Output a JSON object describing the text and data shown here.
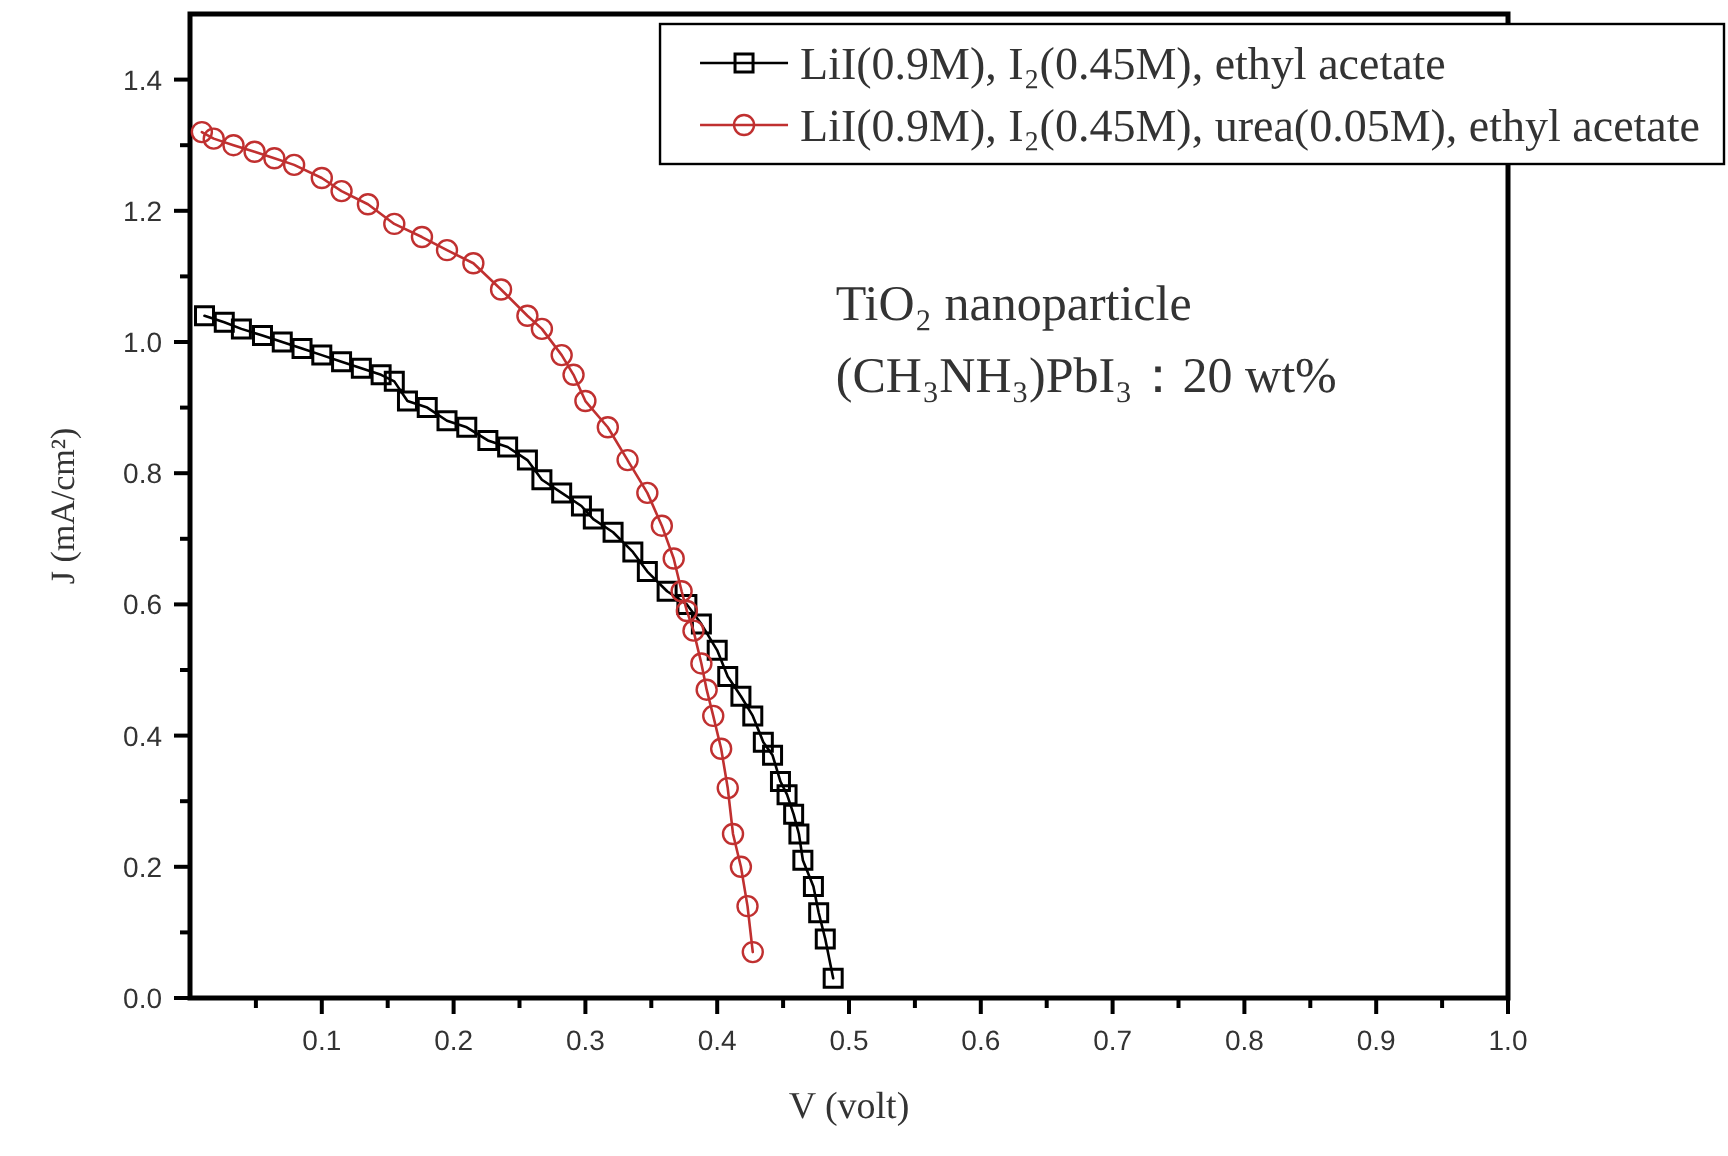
{
  "chart_data": {
    "type": "line",
    "xlabel": "V (volt)",
    "ylabel": "J (mA/cm²)",
    "xlim": [
      0,
      1.0
    ],
    "ylim": [
      0,
      1.5
    ],
    "xticks": [
      {
        "value": 0.05,
        "label": null
      },
      0.1,
      {
        "value": 0.15,
        "label": null
      },
      0.2,
      {
        "value": 0.25,
        "label": null
      },
      0.3,
      {
        "value": 0.35,
        "label": null
      },
      0.4,
      {
        "value": 0.45,
        "label": null
      },
      0.5,
      {
        "value": 0.55,
        "label": null
      },
      0.6,
      {
        "value": 0.65,
        "label": null
      },
      0.7,
      {
        "value": 0.75,
        "label": null
      },
      0.8,
      {
        "value": 0.85,
        "label": null
      },
      0.9,
      {
        "value": 0.95,
        "label": null
      },
      {
        "value": 1,
        "label": "1.0"
      }
    ],
    "yticks": [
      {
        "value": 0,
        "label": "0.0"
      },
      {
        "value": 0.1,
        "label": null
      },
      0.2,
      {
        "value": 0.3,
        "label": null
      },
      0.4,
      {
        "value": 0.5,
        "label": null
      },
      0.6,
      {
        "value": 0.7,
        "label": null
      },
      0.8,
      {
        "value": 0.9,
        "label": null
      },
      {
        "value": 1,
        "label": "1.0"
      },
      {
        "value": 1.1,
        "label": null
      },
      1.2,
      {
        "value": 1.3,
        "label": null
      },
      1.4
    ],
    "legend": "top right",
    "annotations": [
      "TiO₂ nanoparticle",
      "(CH₃NH₃)PbI₃：20 wt%"
    ],
    "series": [
      {
        "name": "LiI(0.9M), I₂(0.45M), ethyl acetate",
        "color": "#000000",
        "marker": "square",
        "x": [
          0.011,
          0.026,
          0.039,
          0.055,
          0.07,
          0.085,
          0.1,
          0.115,
          0.13,
          0.145,
          0.155,
          0.165,
          0.18,
          0.195,
          0.21,
          0.226,
          0.241,
          0.256,
          0.267,
          0.282,
          0.297,
          0.306,
          0.321,
          0.336,
          0.347,
          0.362,
          0.377,
          0.388,
          0.4,
          0.408,
          0.418,
          0.427,
          0.435,
          0.442,
          0.448,
          0.453,
          0.458,
          0.462,
          0.465,
          0.473,
          0.477,
          0.482,
          0.488
        ],
        "values": [
          1.04,
          1.03,
          1.02,
          1.01,
          1.0,
          0.99,
          0.98,
          0.97,
          0.96,
          0.95,
          0.94,
          0.91,
          0.9,
          0.88,
          0.87,
          0.85,
          0.84,
          0.82,
          0.79,
          0.77,
          0.75,
          0.73,
          0.71,
          0.68,
          0.65,
          0.62,
          0.6,
          0.57,
          0.53,
          0.49,
          0.46,
          0.43,
          0.39,
          0.37,
          0.33,
          0.31,
          0.28,
          0.25,
          0.21,
          0.17,
          0.13,
          0.09,
          0.03
        ]
      },
      {
        "name": "LiI(0.9M), I₂(0.45M), urea(0.05M), ethyl acetate",
        "color": "#c03030",
        "marker": "circle",
        "x": [
          0.009,
          0.018,
          0.033,
          0.049,
          0.064,
          0.079,
          0.1,
          0.115,
          0.135,
          0.155,
          0.176,
          0.195,
          0.215,
          0.236,
          0.256,
          0.267,
          0.282,
          0.291,
          0.3,
          0.317,
          0.332,
          0.347,
          0.358,
          0.367,
          0.373,
          0.377,
          0.382,
          0.388,
          0.392,
          0.397,
          0.403,
          0.408,
          0.412,
          0.418,
          0.423,
          0.427
        ],
        "values": [
          1.32,
          1.31,
          1.3,
          1.29,
          1.28,
          1.27,
          1.25,
          1.23,
          1.21,
          1.18,
          1.16,
          1.14,
          1.12,
          1.08,
          1.04,
          1.02,
          0.98,
          0.95,
          0.91,
          0.87,
          0.82,
          0.77,
          0.72,
          0.67,
          0.62,
          0.59,
          0.56,
          0.51,
          0.47,
          0.43,
          0.38,
          0.32,
          0.25,
          0.2,
          0.14,
          0.07
        ]
      }
    ]
  }
}
